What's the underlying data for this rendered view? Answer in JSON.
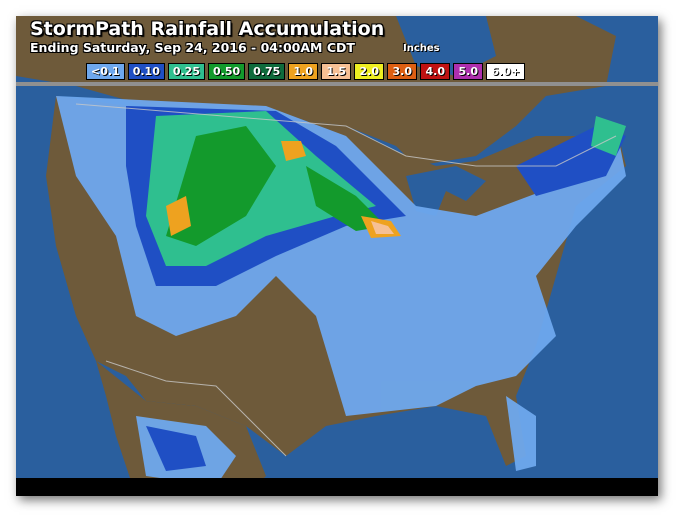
{
  "title": "StormPath Rainfall Accumulation",
  "subtitle": "Ending Saturday, Sep 24, 2016 - 04:00AM CDT",
  "units": "Inches",
  "legend": [
    {
      "label": "<0.1",
      "color": "#6ea8ee"
    },
    {
      "label": "0.10",
      "color": "#1f4fc4"
    },
    {
      "label": "0.25",
      "color": "#2fbf8f"
    },
    {
      "label": "0.50",
      "color": "#139a2c"
    },
    {
      "label": "0.75",
      "color": "#0f6b3c"
    },
    {
      "label": "1.0",
      "color": "#eea21f"
    },
    {
      "label": "1.5",
      "color": "#f6c094"
    },
    {
      "label": "2.0",
      "color": "#eeee22"
    },
    {
      "label": "3.0",
      "color": "#dd5f12"
    },
    {
      "label": "4.0",
      "color": "#bf1212"
    },
    {
      "label": "5.0",
      "color": "#ae2fae"
    },
    {
      "label": "6.0+",
      "color": "#ffffff"
    }
  ],
  "colors": {
    "land": "#6e5a3a",
    "water": "#2a5f9e",
    "borders": "#c8c8c8"
  }
}
